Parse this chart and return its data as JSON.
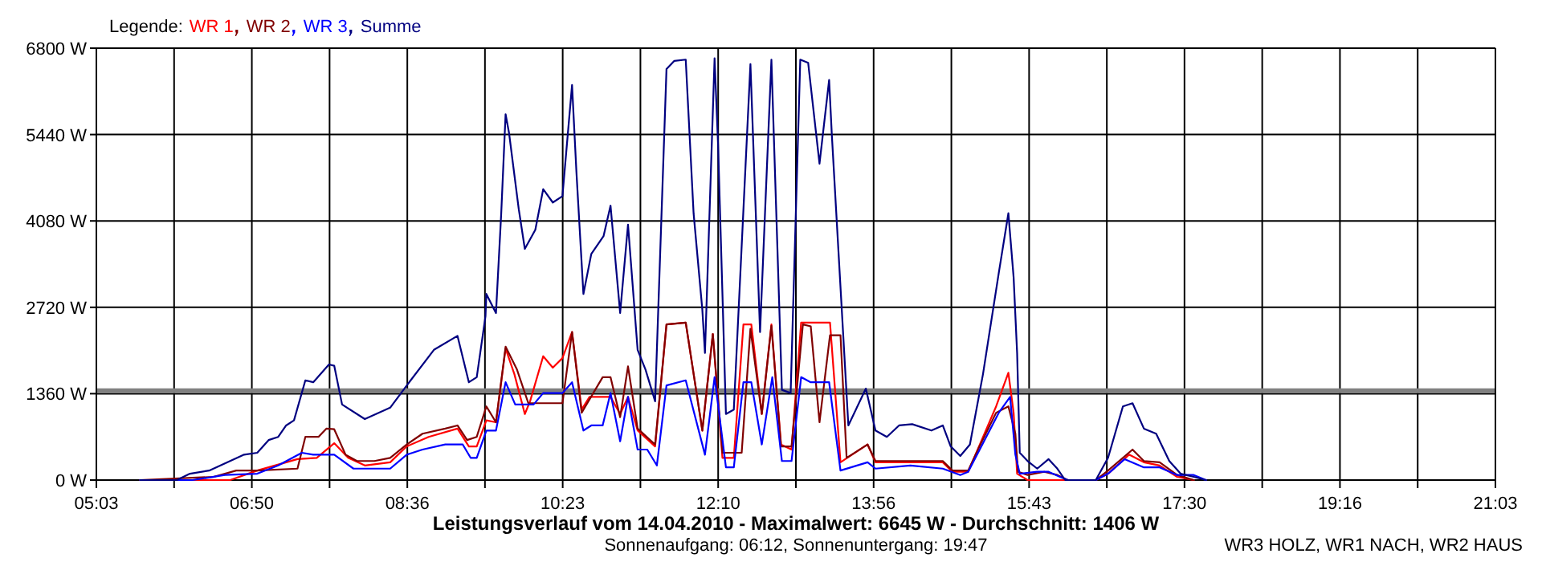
{
  "chart_data": {
    "type": "line",
    "title": "Leistungsverlauf vom 14.04.2010 - Maximalwert: 6645 W - Durchschnitt: 1406 W",
    "subtitle": "Sonnenaufgang: 06:12, Sonnenuntergang: 19:47",
    "legend_title": "Legende:",
    "legend": "top left",
    "grid": true,
    "annotations": [
      "WR3 HOLZ, WR1 NACH, WR2 HAUS"
    ],
    "xlim": [
      5.05,
      21.05
    ],
    "xticks": [
      {
        "value": 5.05,
        "label": "05:03"
      },
      {
        "value": 5.939,
        "label": null
      },
      {
        "value": 6.828,
        "label": "06:50"
      },
      {
        "value": 7.717,
        "label": null
      },
      {
        "value": 8.606,
        "label": "08:36"
      },
      {
        "value": 9.494,
        "label": null
      },
      {
        "value": 10.383,
        "label": "10:23"
      },
      {
        "value": 11.272,
        "label": null
      },
      {
        "value": 12.161,
        "label": "12:10"
      },
      {
        "value": 13.05,
        "label": null
      },
      {
        "value": 13.939,
        "label": "13:56"
      },
      {
        "value": 14.828,
        "label": null
      },
      {
        "value": 15.717,
        "label": "15:43"
      },
      {
        "value": 16.606,
        "label": null
      },
      {
        "value": 17.494,
        "label": "17:30"
      },
      {
        "value": 18.383,
        "label": null
      },
      {
        "value": 19.272,
        "label": "19:16"
      },
      {
        "value": 20.161,
        "label": null
      },
      {
        "value": 21.05,
        "label": "21:03"
      }
    ],
    "ylim": [
      0,
      6800
    ],
    "yticks": [
      {
        "value": 0,
        "label": "0 W"
      },
      {
        "value": 1360,
        "label": "1360 W"
      },
      {
        "value": 2720,
        "label": "2720 W"
      },
      {
        "value": 4080,
        "label": "4080 W"
      },
      {
        "value": 5440,
        "label": "5440 W"
      },
      {
        "value": 6800,
        "label": "6800 W"
      }
    ],
    "ref_lines": [
      {
        "axis": "y",
        "value": 1406,
        "color": "#808080"
      }
    ],
    "series": [
      {
        "name": "WR 1",
        "color": "#ff0000",
        "x": [
          5.55,
          6.58,
          6.89,
          7.35,
          7.57,
          7.77,
          7.93,
          8.12,
          8.41,
          8.6,
          8.85,
          9.18,
          9.31,
          9.4,
          9.51,
          9.62,
          9.73,
          9.83,
          9.95,
          10.01,
          10.16,
          10.27,
          10.38,
          10.49,
          10.6,
          10.69,
          10.93,
          11.04,
          11.13,
          11.24,
          11.44,
          11.57,
          11.79,
          11.98,
          12.1,
          12.21,
          12.34,
          12.45,
          12.54,
          12.66,
          12.77,
          12.88,
          13.0,
          13.11,
          13.44,
          13.56,
          13.87,
          13.96,
          14.73,
          14.84,
          15.02,
          15.34,
          15.48,
          15.54,
          15.58,
          15.7,
          16.07,
          16.48,
          16.62,
          16.86,
          17.03,
          17.21,
          17.41,
          17.6
        ],
        "values": [
          0,
          0,
          150,
          330,
          350,
          580,
          350,
          230,
          280,
          530,
          680,
          810,
          530,
          530,
          940,
          910,
          2070,
          1670,
          1040,
          1240,
          1950,
          1770,
          1920,
          2330,
          1110,
          1310,
          1310,
          1040,
          1310,
          780,
          530,
          2450,
          2480,
          780,
          2300,
          350,
          350,
          2450,
          2450,
          1040,
          2450,
          560,
          480,
          2480,
          2480,
          280,
          560,
          280,
          280,
          130,
          130,
          1160,
          1690,
          1060,
          100,
          0,
          0,
          0,
          100,
          400,
          280,
          230,
          50,
          0
        ]
      },
      {
        "name": "WR 2",
        "color": "#800000",
        "x": [
          5.55,
          6.39,
          6.65,
          6.89,
          7.35,
          7.44,
          7.59,
          7.68,
          7.77,
          7.9,
          8.03,
          8.23,
          8.41,
          8.6,
          8.78,
          9.04,
          9.18,
          9.29,
          9.4,
          9.51,
          9.62,
          9.73,
          9.86,
          9.99,
          10.38,
          10.49,
          10.6,
          10.84,
          10.93,
          11.04,
          11.13,
          11.24,
          11.44,
          11.57,
          11.79,
          11.98,
          12.1,
          12.21,
          12.43,
          12.53,
          12.66,
          12.77,
          12.88,
          13.0,
          13.13,
          13.22,
          13.32,
          13.44,
          13.56,
          13.63,
          13.87,
          13.96,
          14.73,
          14.84,
          15.02,
          15.15,
          15.34,
          15.48,
          15.56,
          15.59,
          15.7,
          15.89,
          16.04,
          16.16,
          16.48,
          16.62,
          16.9,
          17.03,
          17.21,
          17.41,
          17.6
        ],
        "values": [
          0,
          50,
          150,
          150,
          180,
          680,
          680,
          810,
          800,
          400,
          300,
          300,
          350,
          560,
          730,
          810,
          860,
          630,
          680,
          1160,
          910,
          2100,
          1740,
          1210,
          1210,
          2330,
          1060,
          1620,
          1620,
          990,
          1790,
          810,
          560,
          2450,
          2480,
          780,
          2300,
          430,
          430,
          2380,
          1040,
          2430,
          530,
          530,
          2450,
          2420,
          910,
          2280,
          2280,
          350,
          560,
          300,
          300,
          150,
          150,
          530,
          1060,
          1160,
          730,
          130,
          80,
          130,
          80,
          0,
          0,
          150,
          480,
          300,
          280,
          80,
          0
        ]
      },
      {
        "name": "WR 3",
        "color": "#0000ff",
        "x": [
          5.55,
          5.97,
          6.15,
          6.52,
          6.89,
          7.13,
          7.4,
          7.53,
          7.77,
          7.99,
          8.41,
          8.6,
          8.78,
          9.04,
          9.24,
          9.33,
          9.4,
          9.51,
          9.62,
          9.73,
          9.84,
          10.05,
          10.16,
          10.38,
          10.49,
          10.62,
          10.71,
          10.84,
          10.93,
          11.04,
          11.13,
          11.24,
          11.35,
          11.46,
          11.57,
          11.79,
          12.01,
          12.12,
          12.25,
          12.34,
          12.45,
          12.54,
          12.66,
          12.78,
          12.89,
          13.0,
          13.11,
          13.22,
          13.43,
          13.56,
          13.87,
          13.96,
          14.36,
          14.73,
          14.93,
          15.02,
          15.37,
          15.5,
          15.56,
          15.61,
          15.81,
          15.94,
          16.07,
          16.16,
          16.48,
          16.62,
          16.81,
          17.03,
          17.21,
          17.41,
          17.6,
          17.74
        ],
        "values": [
          0,
          0,
          0,
          80,
          100,
          230,
          430,
          400,
          400,
          180,
          180,
          400,
          480,
          560,
          560,
          350,
          350,
          780,
          780,
          1540,
          1190,
          1190,
          1370,
          1370,
          1540,
          780,
          860,
          860,
          1370,
          610,
          1310,
          480,
          480,
          230,
          1490,
          1570,
          400,
          1620,
          200,
          200,
          1540,
          1540,
          560,
          1620,
          300,
          300,
          1620,
          1540,
          1540,
          150,
          280,
          180,
          230,
          180,
          80,
          130,
          1060,
          1310,
          400,
          100,
          130,
          130,
          50,
          0,
          0,
          100,
          330,
          200,
          200,
          80,
          80,
          0
        ]
      },
      {
        "name": "Summe",
        "color": "#000080",
        "x": [
          5.55,
          5.97,
          6.12,
          6.34,
          6.74,
          6.89,
          7.02,
          7.13,
          7.22,
          7.31,
          7.44,
          7.53,
          7.71,
          7.77,
          7.86,
          8.12,
          8.41,
          8.6,
          8.91,
          9.18,
          9.31,
          9.4,
          9.5,
          9.51,
          9.62,
          9.68,
          9.73,
          9.77,
          9.88,
          9.95,
          10.07,
          10.16,
          10.27,
          10.38,
          10.49,
          10.54,
          10.62,
          10.71,
          10.85,
          10.93,
          11.04,
          11.13,
          11.24,
          11.33,
          11.44,
          11.57,
          11.66,
          11.79,
          11.88,
          11.98,
          12.01,
          12.12,
          12.16,
          12.25,
          12.34,
          12.53,
          12.64,
          12.77,
          12.89,
          12.99,
          13.1,
          13.19,
          13.32,
          13.43,
          13.46,
          13.65,
          13.85,
          13.96,
          14.09,
          14.23,
          14.38,
          14.6,
          14.73,
          14.82,
          14.93,
          15.04,
          15.19,
          15.37,
          15.48,
          15.54,
          15.58,
          15.61,
          15.7,
          15.81,
          15.94,
          16.04,
          16.13,
          16.22,
          16.48,
          16.62,
          16.79,
          16.9,
          17.03,
          17.17,
          17.32,
          17.45,
          17.6,
          17.74
        ],
        "values": [
          0,
          0,
          100,
          150,
          400,
          430,
          630,
          680,
          860,
          940,
          1570,
          1540,
          1820,
          1800,
          1190,
          960,
          1140,
          1490,
          2050,
          2270,
          1540,
          1620,
          2580,
          2930,
          2630,
          4200,
          5760,
          5460,
          4270,
          3640,
          3940,
          4580,
          4370,
          4470,
          6220,
          4850,
          2930,
          3560,
          3840,
          4320,
          2630,
          4020,
          2050,
          1740,
          1240,
          6470,
          6600,
          6620,
          4200,
          2680,
          2000,
          6640,
          5280,
          1040,
          1110,
          6550,
          2330,
          6620,
          1420,
          1370,
          6620,
          6570,
          4980,
          6300,
          5460,
          860,
          1440,
          780,
          680,
          860,
          880,
          780,
          860,
          530,
          380,
          560,
          1670,
          3260,
          4200,
          3190,
          2000,
          430,
          300,
          180,
          330,
          180,
          0,
          0,
          0,
          350,
          1160,
          1210,
          810,
          730,
          300,
          100,
          50,
          0
        ]
      }
    ]
  }
}
